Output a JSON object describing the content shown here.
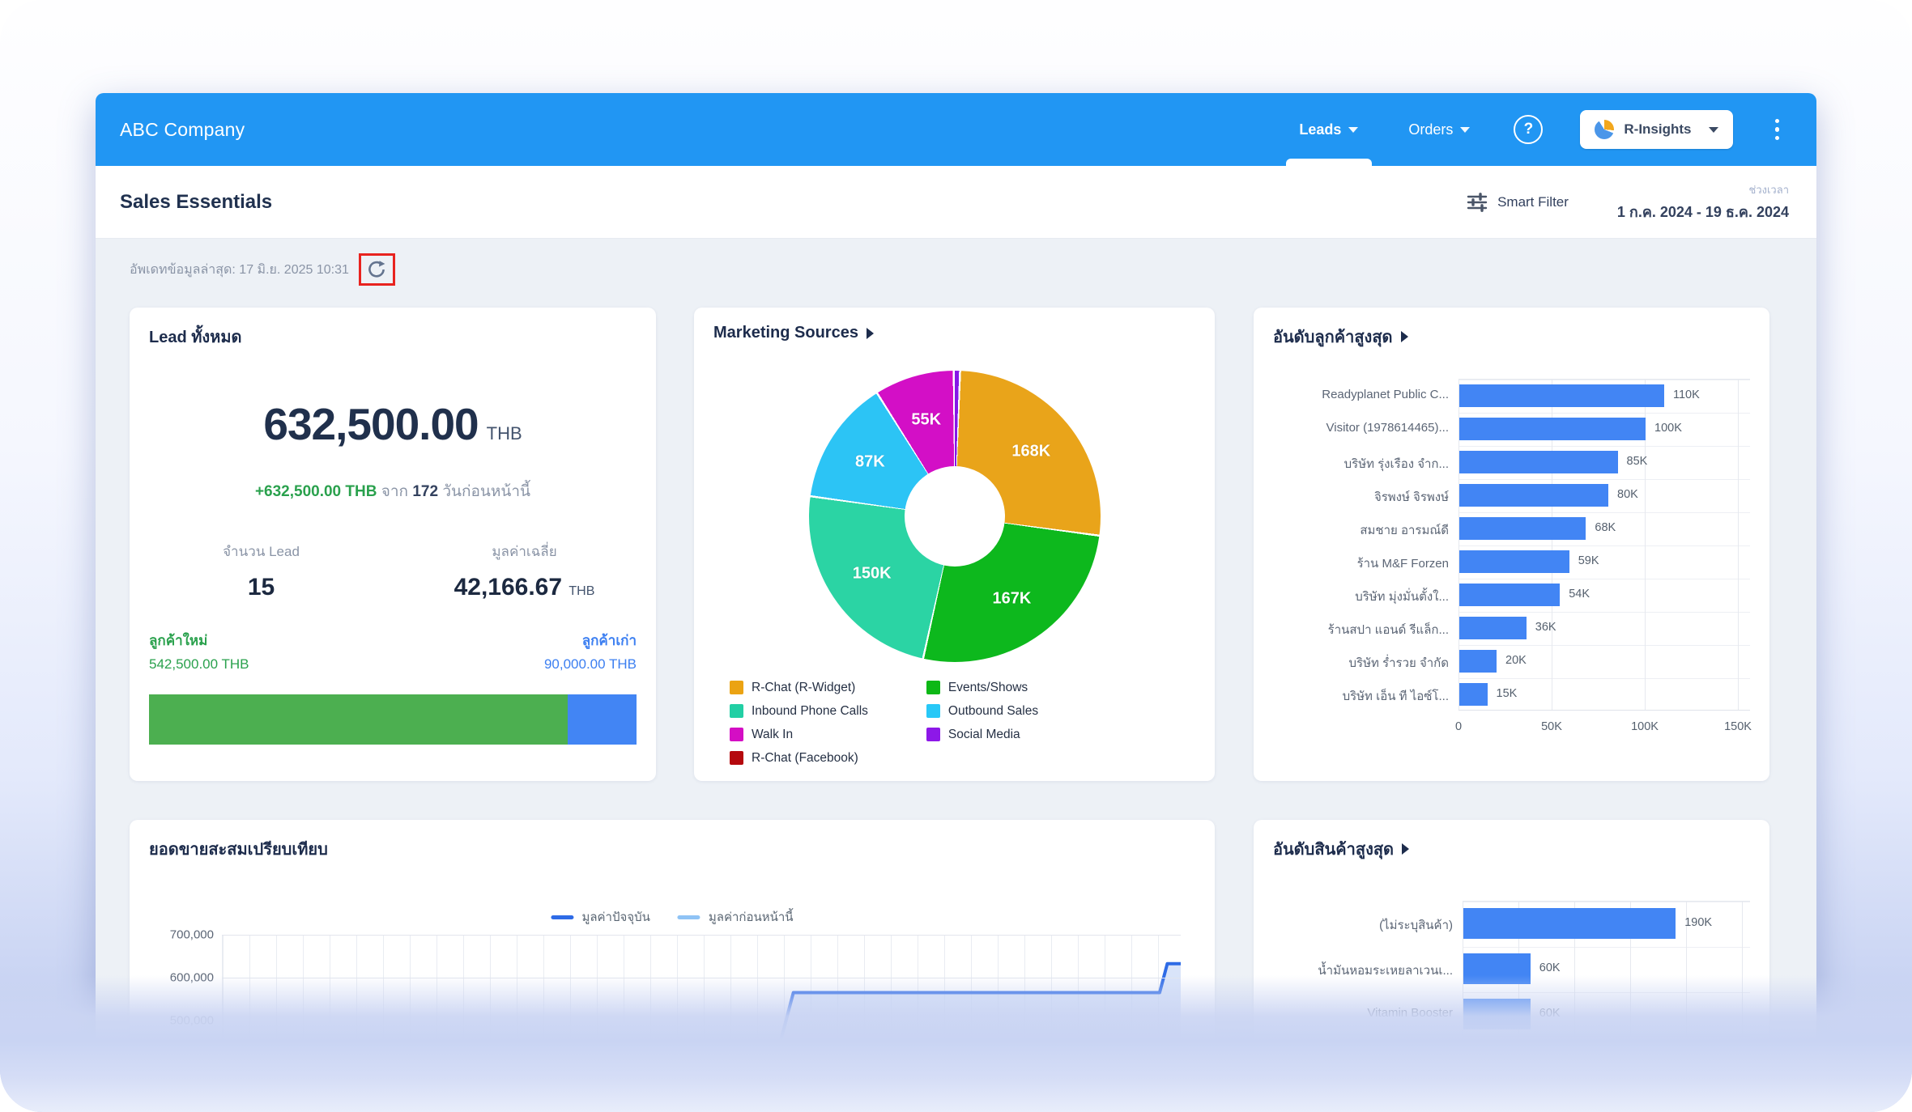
{
  "colors": {
    "header_blue": "#2196f3",
    "page_bg": "#edf1f6",
    "bar_blue": "#4285f4",
    "green": "#4caf50",
    "delta_green": "#2aa14d",
    "link_blue": "#3c7ff1",
    "annotation_red": "#e8231f",
    "title_navy": "#1d2c4c"
  },
  "header": {
    "brand": "ABC Company",
    "nav": [
      {
        "label": "Leads",
        "active": true
      },
      {
        "label": "Orders",
        "active": false
      }
    ],
    "help_glyph": "?",
    "insights_label": "R-Insights"
  },
  "subheader": {
    "title": "Sales Essentials",
    "filter_label": "Smart Filter",
    "period_label": "ช่วงเวลา",
    "period_value": "1 ก.ค. 2024 - 19 ธ.ค. 2024"
  },
  "status": {
    "updated_text": "อัพเดทข้อมูลล่าสุด: 17 มิ.ย. 2025 10:31"
  },
  "lead_card": {
    "title": "Lead ทั้งหมด",
    "total": "632,500.00",
    "currency": "THB",
    "delta_value": "+632,500.00 THB",
    "delta_join": "จาก",
    "delta_days": "172",
    "delta_tail": "วันก่อนหน้านี้",
    "count_label": "จำนวน Lead",
    "count": "15",
    "avg_label": "มูลค่าเฉลี่ย",
    "avg": "42,166.67",
    "avg_unit": "THB",
    "new_label": "ลูกค้าใหม่",
    "new_value": "542,500.00 THB",
    "old_label": "ลูกค้าเก่า",
    "old_value": "90,000.00 THB",
    "split": {
      "new_pct": 85.8,
      "old_pct": 14.2
    }
  },
  "chart_data": [
    {
      "type": "pie",
      "title": "Marketing Sources",
      "hole_ratio": 0.34,
      "slices": [
        {
          "name": "Social Media",
          "value": 3,
          "label": "",
          "color": "#8618e6"
        },
        {
          "name": "R-Chat (R-Widget)",
          "value": 168,
          "label": "168K",
          "color": "#e9a41a"
        },
        {
          "name": "Events/Shows",
          "value": 167,
          "label": "167K",
          "color": "#0db81d"
        },
        {
          "name": "Inbound Phone Calls",
          "value": 150,
          "label": "150K",
          "color": "#2bd4a4"
        },
        {
          "name": "Outbound Sales",
          "value": 87,
          "label": "87K",
          "color": "#2cc4f5"
        },
        {
          "name": "Walk In",
          "value": 55,
          "label": "55K",
          "color": "#d30fc6"
        }
      ],
      "legend": [
        {
          "label": "R-Chat (R-Widget)",
          "color": "#eba313"
        },
        {
          "label": "Inbound Phone Calls",
          "color": "#22cfa4"
        },
        {
          "label": "Walk In",
          "color": "#d40ec4"
        },
        {
          "label": "R-Chat (Facebook)",
          "color": "#b5090e"
        },
        {
          "label": "Events/Shows",
          "color": "#0db816"
        },
        {
          "label": "Outbound Sales",
          "color": "#28c8f7"
        },
        {
          "label": "Social Media",
          "color": "#8d18e8"
        }
      ]
    },
    {
      "type": "bar",
      "title": "อันดับลูกค้าสูงสุด",
      "orientation": "horizontal",
      "categories": [
        "Readyplanet Public C...",
        "Visitor (1978614465)...",
        "บริษัท รุ่งเรือง จำก...",
        "จิรพงษ์ จิรพงษ์",
        "สมชาย อารมณ์ดี",
        "ร้าน M&F Forzen",
        "บริษัท มุ่งมั่นตั้งใ...",
        "ร้านสปา แอนด์ รีแล็ก...",
        "บริษัท ร่ำรวย จำกัด",
        "บริษัท เอ็น ที ไอซ์โ..."
      ],
      "values": [
        110,
        100,
        85,
        80,
        68,
        59,
        54,
        36,
        20,
        15
      ],
      "value_labels": [
        "110K",
        "100K",
        "85K",
        "80K",
        "68K",
        "59K",
        "54K",
        "36K",
        "20K",
        "15K"
      ],
      "unit": "K",
      "xticks": [
        "0",
        "50K",
        "100K",
        "150K"
      ],
      "xtick_values": [
        0,
        50,
        100,
        150
      ],
      "xmax": 155,
      "bar_color": "#4285f4"
    },
    {
      "type": "line",
      "title": "ยอดขายสะสมเปรียบเทียบ",
      "yticks": [
        "700,000",
        "600,000",
        "500,000"
      ],
      "ytick_values": [
        700000,
        600000,
        500000
      ],
      "series": [
        {
          "name": "มูลค่าปัจจุบัน",
          "color": "#2e6be6",
          "points": [
            [
              58.3,
              455000
            ],
            [
              59.6,
              565000
            ],
            [
              97.8,
              565000
            ],
            [
              98.6,
              632500
            ],
            [
              100,
              632500
            ]
          ]
        },
        {
          "name": "มูลค่าก่อนหน้านี้",
          "color": "#8fc3f5",
          "points": []
        }
      ],
      "fill_color": "#b9cdf4",
      "grid": true
    },
    {
      "type": "bar",
      "title": "อันดับสินค้าสูงสุด",
      "orientation": "horizontal",
      "categories": [
        "(ไม่ระบุสินค้า)",
        "น้ำมันหอมระเหยลาเวนเ...",
        "Vitamin Booster"
      ],
      "values": [
        190,
        60,
        60
      ],
      "value_labels": [
        "190K",
        "60K",
        "60K"
      ],
      "unit": "K",
      "grid_step": 50,
      "xmax": 260,
      "bar_color": "#4285f4"
    }
  ]
}
